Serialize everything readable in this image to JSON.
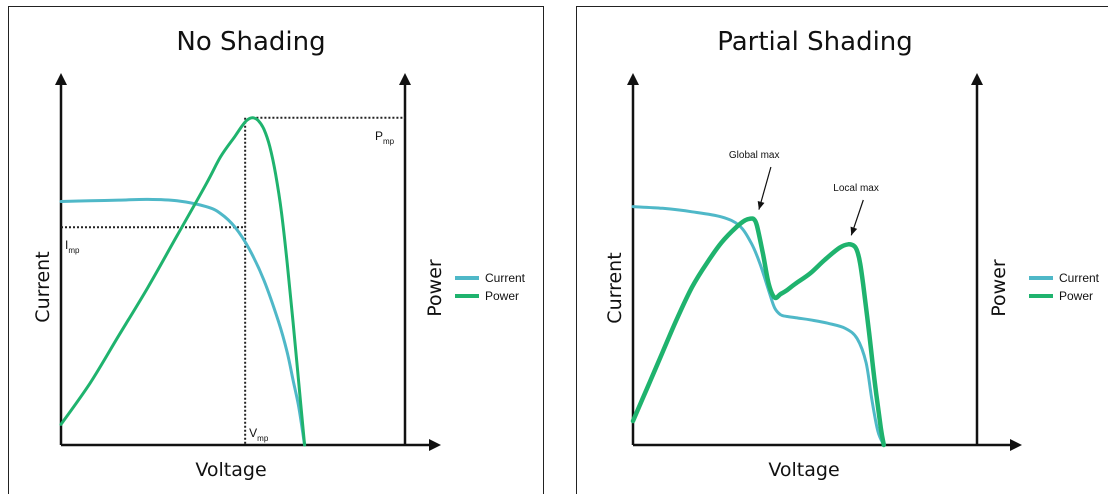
{
  "colors": {
    "current": "#4fb8c8",
    "power": "#1fb36e",
    "axis": "#111111",
    "guide": "#222222"
  },
  "chart_data": [
    {
      "type": "line",
      "title": "No Shading",
      "xlabel": "Voltage",
      "ylabel_left": "Current",
      "ylabel_right": "Power",
      "xlim": [
        0,
        100
      ],
      "ylim": [
        0,
        100
      ],
      "legend": {
        "placement": "right",
        "items": [
          {
            "name": "Current",
            "color": "#4fb8c8"
          },
          {
            "name": "Power",
            "color": "#1fb36e"
          }
        ]
      },
      "series": [
        {
          "name": "Current",
          "x": [
            0,
            10,
            20,
            30,
            40,
            50,
            55,
            60,
            65,
            70,
            75,
            78,
            80,
            82,
            84
          ],
          "y": [
            71,
            71.2,
            71.4,
            71.6,
            71.2,
            69.5,
            67.5,
            63.5,
            57,
            48,
            36,
            27,
            19,
            11,
            0
          ]
        },
        {
          "name": "Power",
          "x": [
            0,
            10,
            20,
            30,
            40,
            50,
            55,
            60,
            62,
            64,
            66,
            68,
            70,
            72,
            74,
            76,
            78,
            80,
            82,
            84
          ],
          "y": [
            6,
            18,
            32,
            46,
            61,
            76,
            84,
            90,
            92.5,
            94.6,
            95.4,
            94.6,
            92,
            87,
            79,
            68,
            53,
            36,
            18,
            0
          ]
        }
      ],
      "annotations": [
        {
          "main": "P",
          "sub": "mp",
          "x": 66,
          "y": 95.4
        },
        {
          "main": "I",
          "sub": "mp",
          "x": 0,
          "y": 63.5
        },
        {
          "main": "V",
          "sub": "mp",
          "x": 63.5,
          "y": 0
        }
      ]
    },
    {
      "type": "line",
      "title": "Partial Shading",
      "xlabel": "Voltage",
      "ylabel_left": "Current",
      "ylabel_right": "Power",
      "xlim": [
        0,
        100
      ],
      "ylim": [
        0,
        100
      ],
      "legend": {
        "placement": "right",
        "items": [
          {
            "name": "Current",
            "color": "#4fb8c8"
          },
          {
            "name": "Power",
            "color": "#1fb36e"
          }
        ]
      },
      "series": [
        {
          "name": "Current",
          "x": [
            0,
            10,
            20,
            30,
            36,
            40,
            43,
            46,
            48,
            50,
            52,
            56,
            60,
            66,
            72,
            76,
            79,
            81,
            83,
            85
          ],
          "y": [
            69.5,
            69,
            68,
            66.5,
            64,
            59,
            53,
            45,
            40,
            38,
            37.5,
            37,
            36.5,
            35.5,
            34,
            31,
            24,
            13,
            4,
            0
          ]
        },
        {
          "name": "Power",
          "x": [
            0,
            5,
            10,
            15,
            20,
            25,
            30,
            35,
            38,
            40,
            41,
            42,
            44,
            46,
            48,
            50,
            52,
            55,
            60,
            65,
            70,
            73,
            75,
            76,
            77,
            78,
            80,
            82,
            84,
            85
          ],
          "y": [
            7,
            17,
            27,
            37,
            46,
            53,
            59,
            63.5,
            65.5,
            66,
            65.8,
            64,
            56,
            47,
            43,
            44,
            45,
            47,
            50,
            54,
            57.5,
            58.5,
            58,
            56.5,
            53,
            47,
            33,
            18,
            5,
            0
          ]
        }
      ],
      "annotations": [
        {
          "text": "Global max",
          "x": 42,
          "y": 66
        },
        {
          "text": "Local max",
          "x": 74,
          "y": 58.5
        }
      ]
    }
  ]
}
